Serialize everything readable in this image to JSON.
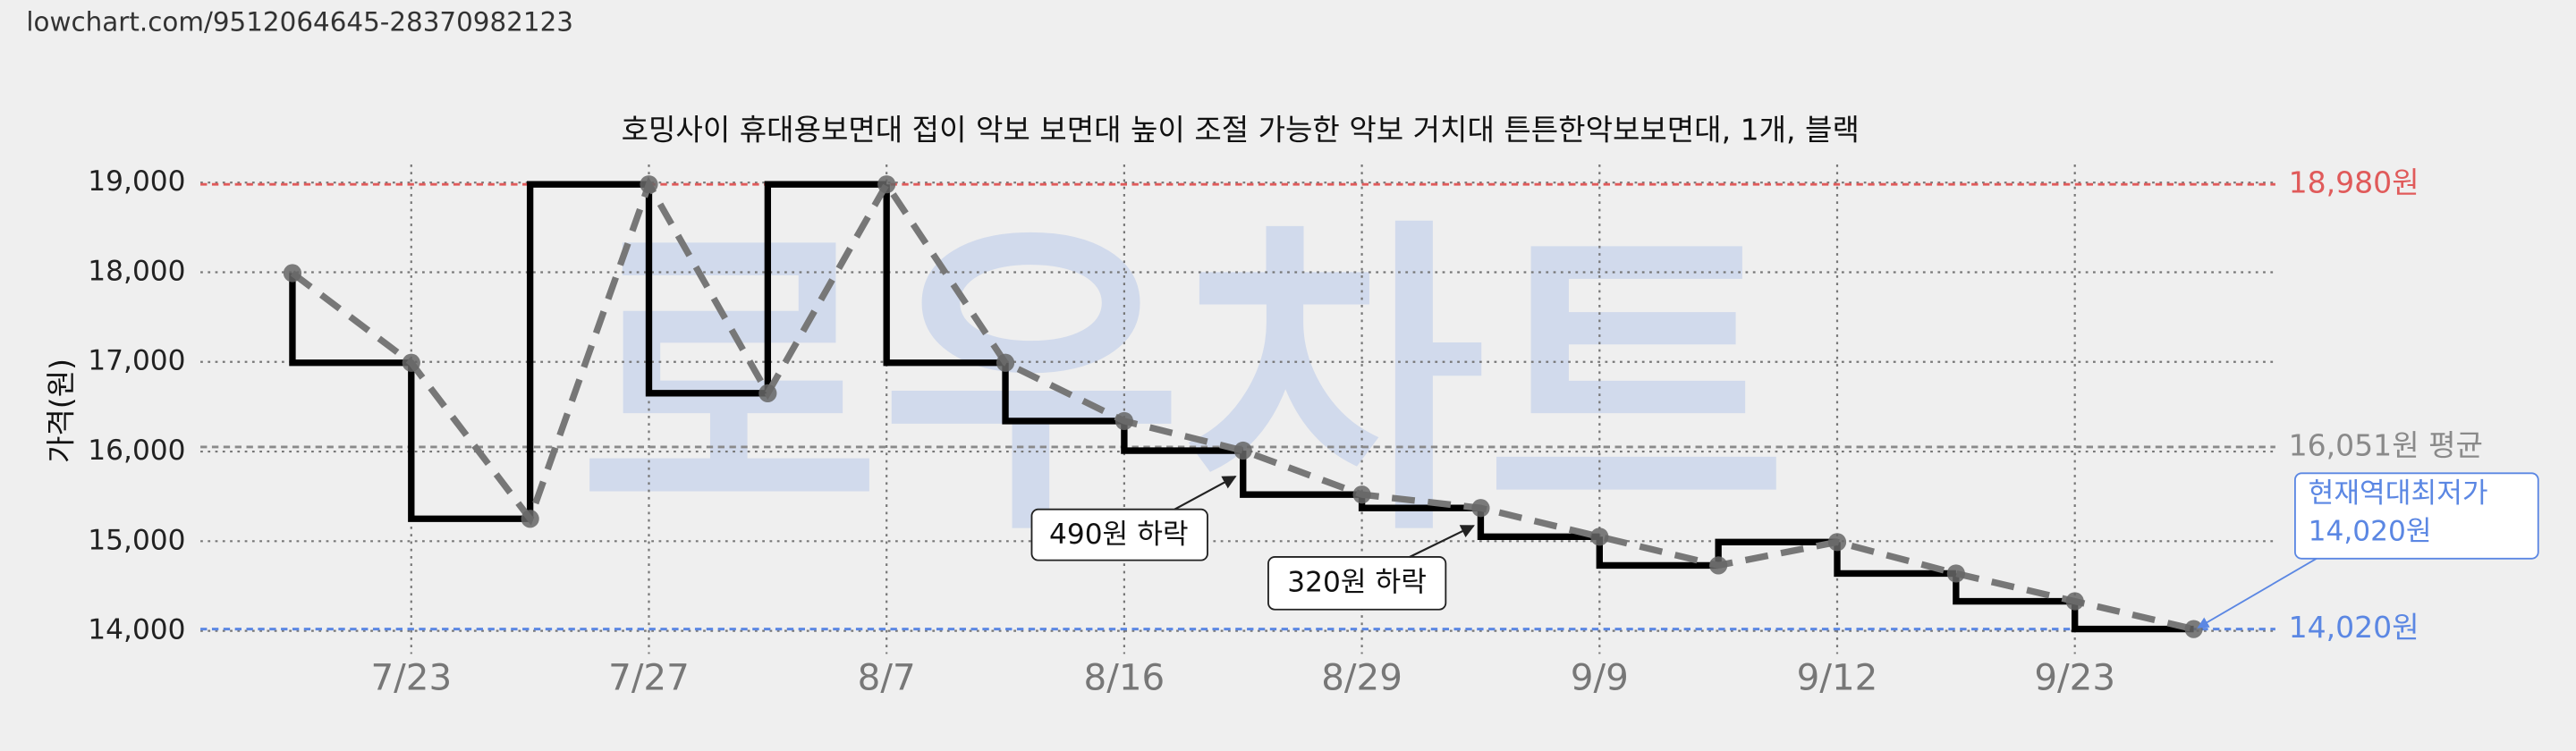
{
  "chart_data": {
    "type": "step-line",
    "url": "lowchart.com/9512064645-28370982123",
    "title": "호밍사이 휴대용보면대 접이 악보 보면대 높이 조절 가능한 악보 거치대 튼튼한악보보면대, 1개, 블랙",
    "watermark": "로우차트",
    "y_label": "가격(원)",
    "categories": [
      null,
      "7/23",
      null,
      "7/27",
      null,
      "8/7",
      null,
      "8/16",
      null,
      "8/29",
      null,
      "9/9",
      null,
      "9/12",
      null,
      "9/23",
      null
    ],
    "values": [
      17990,
      16990,
      15250,
      18980,
      16650,
      18980,
      16990,
      16340,
      16010,
      15520,
      15370,
      15050,
      14730,
      14990,
      14640,
      14330,
      14020
    ],
    "ylim": [
      14000,
      19000
    ],
    "yticks": [
      {
        "value": 14000,
        "label": "14,000"
      },
      {
        "value": 15000,
        "label": "15,000"
      },
      {
        "value": 16000,
        "label": "16,000"
      },
      {
        "value": 17000,
        "label": "17,000"
      },
      {
        "value": 18000,
        "label": "18,000"
      },
      {
        "value": 19000,
        "label": "19,000"
      }
    ],
    "grid": true,
    "color": "#000000",
    "trend_color": "#777777",
    "reference_lines": [
      {
        "value": 18980,
        "label": "18,980원",
        "color": "#e05a5a"
      },
      {
        "value": 16051,
        "label": "16,051원 평균",
        "color": "#8a8a8a"
      },
      {
        "value": 14020,
        "label": "14,020원",
        "color": "#5b87e3"
      }
    ],
    "annotations": [
      {
        "text": "490원 하락"
      },
      {
        "text": "320원 하락"
      },
      {
        "lines": [
          "현재역대최저가",
          "14,020원"
        ]
      }
    ]
  }
}
